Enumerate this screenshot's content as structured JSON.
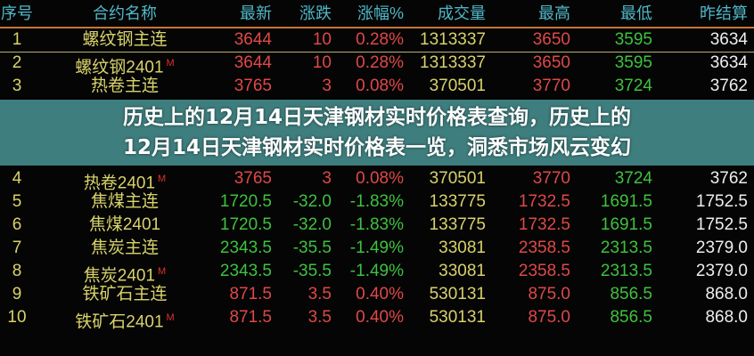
{
  "headers": [
    "序号",
    "合约名称",
    "最新",
    "涨跌",
    "涨幅%",
    "成交量",
    "最高",
    "最低",
    "昨结算"
  ],
  "colors": {
    "up": "#e04848",
    "down": "#3ec23e",
    "header": "#4fb8c8",
    "name": "#d8d26a",
    "banner": "#468c8c"
  },
  "rows": [
    {
      "seq": "1",
      "name": "螺纹钢主连",
      "mark": "",
      "latest": "3644",
      "change": "10",
      "pct": "0.28%",
      "volume": "1313337",
      "high": "3650",
      "low": "3595",
      "prev": "3634",
      "dir": "up"
    },
    {
      "seq": "2",
      "name": "螺纹钢2401",
      "mark": "M",
      "latest": "3644",
      "change": "10",
      "pct": "0.28%",
      "volume": "1313337",
      "high": "3650",
      "low": "3595",
      "prev": "3634",
      "dir": "up"
    },
    {
      "seq": "3",
      "name": "热卷主连",
      "mark": "",
      "latest": "3765",
      "change": "3",
      "pct": "0.08%",
      "volume": "370501",
      "high": "3770",
      "low": "3724",
      "prev": "3762",
      "dir": "up"
    },
    {
      "seq": "4",
      "name": "热卷2401",
      "mark": "M",
      "latest": "3765",
      "change": "3",
      "pct": "0.08%",
      "volume": "370501",
      "high": "3770",
      "low": "3724",
      "prev": "3762",
      "dir": "up"
    },
    {
      "seq": "5",
      "name": "焦煤主连",
      "mark": "",
      "latest": "1720.5",
      "change": "-32.0",
      "pct": "-1.83%",
      "volume": "133775",
      "high": "1732.5",
      "low": "1691.5",
      "prev": "1752.5",
      "dir": "down"
    },
    {
      "seq": "6",
      "name": "焦煤2401",
      "mark": "",
      "latest": "1720.5",
      "change": "-32.0",
      "pct": "-1.83%",
      "volume": "133775",
      "high": "1732.5",
      "low": "1691.5",
      "prev": "1752.5",
      "dir": "down"
    },
    {
      "seq": "7",
      "name": "焦炭主连",
      "mark": "",
      "latest": "2343.5",
      "change": "-35.5",
      "pct": "-1.49%",
      "volume": "33081",
      "high": "2358.5",
      "low": "2313.5",
      "prev": "2379.0",
      "dir": "down"
    },
    {
      "seq": "8",
      "name": "焦炭2401",
      "mark": "M",
      "latest": "2343.5",
      "change": "-35.5",
      "pct": "-1.49%",
      "volume": "33081",
      "high": "2358.5",
      "low": "2313.5",
      "prev": "2379.0",
      "dir": "down"
    },
    {
      "seq": "9",
      "name": "铁矿石主连",
      "mark": "",
      "latest": "871.5",
      "change": "3.5",
      "pct": "0.40%",
      "volume": "530131",
      "high": "875.0",
      "low": "856.5",
      "prev": "868.0",
      "dir": "up"
    },
    {
      "seq": "10",
      "name": "铁矿石2401",
      "mark": "M",
      "latest": "871.5",
      "change": "3.5",
      "pct": "0.40%",
      "volume": "530131",
      "high": "875.0",
      "low": "856.5",
      "prev": "868.0",
      "dir": "up"
    }
  ],
  "banner": {
    "line1": "历史上的12月14日天津钢材实时价格表查询，历史上的",
    "line2": "12月14日天津钢材实时价格表一览，洞悉市场风云变幻"
  }
}
